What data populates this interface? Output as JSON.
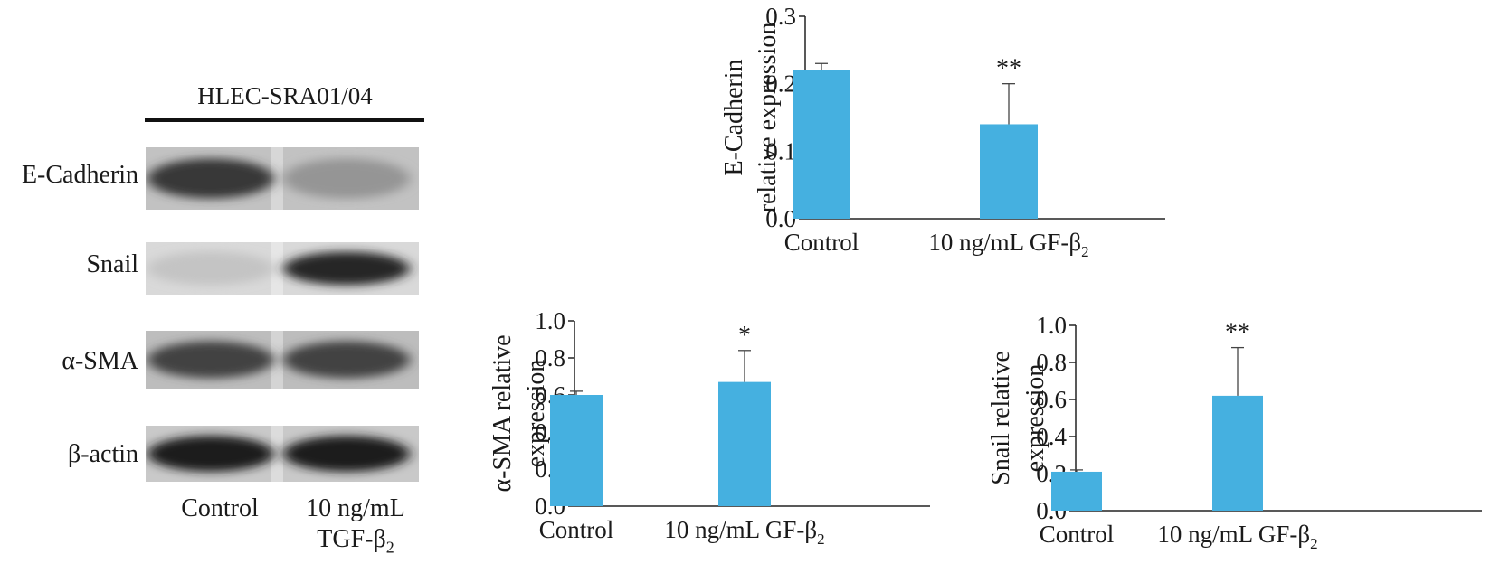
{
  "western_blot": {
    "title": "HLEC-SRA01/04",
    "rows": [
      {
        "label": "E-Cadherin",
        "bands": [
          0.85,
          0.45
        ],
        "background": "#c2c2c2"
      },
      {
        "label": "Snail",
        "bands": [
          0.25,
          0.92
        ],
        "background": "#d9d9d9"
      },
      {
        "label": "α-SMA",
        "bands": [
          0.8,
          0.8
        ],
        "background": "#bdbdbd"
      },
      {
        "label": "β-actin",
        "bands": [
          0.97,
          0.97
        ],
        "background": "#c9c9c9"
      }
    ],
    "lanes": [
      {
        "line1": "Control",
        "line2": ""
      },
      {
        "line1": "10 ng/mL",
        "line2": "TGF-β",
        "sub": "2"
      }
    ]
  },
  "chart_data": [
    {
      "type": "bar",
      "name": "e-cadherin",
      "categories": [
        "Control",
        "10 ng/mL GF-β"
      ],
      "category_subscripts": [
        "",
        "2"
      ],
      "values": [
        0.22,
        0.14
      ],
      "errors": [
        0.01,
        0.06
      ],
      "significance": [
        "",
        "**"
      ],
      "ylabel_lines": [
        "E-Cadherin",
        "relative expression"
      ],
      "ylim": [
        0,
        0.3
      ],
      "yticks": [
        "0.0",
        "0.1",
        "0.2",
        "0.3"
      ],
      "bar_color": "#45b0e0"
    },
    {
      "type": "bar",
      "name": "alpha-sma",
      "categories": [
        "Control",
        "10 ng/mL GF-β"
      ],
      "category_subscripts": [
        "",
        "2"
      ],
      "values": [
        0.6,
        0.67
      ],
      "errors": [
        0.02,
        0.17
      ],
      "significance": [
        "",
        "*"
      ],
      "ylabel_lines": [
        "α-SMA relative",
        "expression"
      ],
      "ylim": [
        0,
        1.0
      ],
      "yticks": [
        "0.0",
        "0.2",
        "0.4",
        "0.6",
        "0.8",
        "1.0"
      ],
      "bar_color": "#45b0e0"
    },
    {
      "type": "bar",
      "name": "snail",
      "categories": [
        "Control",
        "10 ng/mL GF-β"
      ],
      "category_subscripts": [
        "",
        "2"
      ],
      "values": [
        0.21,
        0.62
      ],
      "errors": [
        0.01,
        0.26
      ],
      "significance": [
        "",
        "**"
      ],
      "ylabel_lines": [
        "Snail relative",
        "expression"
      ],
      "ylim": [
        0,
        1.0
      ],
      "yticks": [
        "0.0",
        "0.2",
        "0.4",
        "0.6",
        "0.8",
        "1.0"
      ],
      "bar_color": "#45b0e0"
    }
  ]
}
